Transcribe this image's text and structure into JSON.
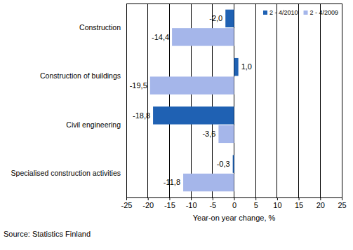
{
  "chart_data": {
    "type": "bar",
    "orientation": "horizontal",
    "categories": [
      "Construction",
      "Construction of buildings",
      "Civil engineering",
      "Specialised construction activities"
    ],
    "series": [
      {
        "name": "2 - 4/2010",
        "color": "#1f61b3",
        "values": [
          -2.0,
          1.0,
          -18.8,
          -0.3
        ],
        "value_labels": [
          "-2,0",
          "1,0",
          "-18,8",
          "-0,3"
        ]
      },
      {
        "name": "2 - 4/2009",
        "color": "#a5b6ea",
        "values": [
          -14.4,
          -19.5,
          -3.6,
          -11.8
        ],
        "value_labels": [
          "-14,4",
          "-19,5",
          "-3,6",
          "-11,8"
        ]
      }
    ],
    "xlim": [
      -25,
      25
    ],
    "xticks": [
      -25,
      -20,
      -15,
      -10,
      -5,
      0,
      5,
      10,
      15,
      20,
      25
    ],
    "x_label": "Year-on year change, %",
    "annotations": [
      "Source: Statistics Finland"
    ],
    "grid": true,
    "legend": "upper right",
    "data_labels": true
  }
}
